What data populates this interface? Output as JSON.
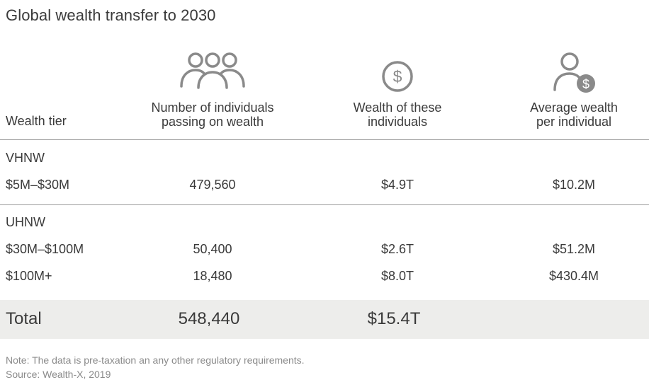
{
  "title": "Global wealth transfer to 2030",
  "headers": {
    "tier": "Wealth tier",
    "individuals_line1": "Number of individuals",
    "individuals_line2": "passing on wealth",
    "wealth_line1": "Wealth of these",
    "wealth_line2": "individuals",
    "average_line1": "Average wealth",
    "average_line2": "per individual"
  },
  "icons": {
    "individuals": "people-group-icon",
    "wealth": "dollar-coin-icon",
    "average": "person-dollar-icon"
  },
  "groups": [
    {
      "name": "VHNW",
      "rows": [
        {
          "tier": "$5M–$30M",
          "individuals": "479,560",
          "wealth": "$4.9T",
          "average": "$10.2M"
        }
      ]
    },
    {
      "name": "UHNW",
      "rows": [
        {
          "tier": "$30M–$100M",
          "individuals": "50,400",
          "wealth": "$2.6T",
          "average": "$51.2M"
        },
        {
          "tier": "$100M+",
          "individuals": "18,480",
          "wealth": "$8.0T",
          "average": "$430.4M"
        }
      ]
    }
  ],
  "total": {
    "label": "Total",
    "individuals": "548,440",
    "wealth": "$15.4T"
  },
  "note": "Note: The data is pre-taxation an any other regulatory requirements.",
  "source": "Source: Wealth-X, 2019",
  "colors": {
    "text": "#3a3a3a",
    "icon": "#8a8a8a",
    "rule": "#9a9a9a",
    "total_bg": "#ededeb",
    "footnote": "#8a8a8a"
  }
}
